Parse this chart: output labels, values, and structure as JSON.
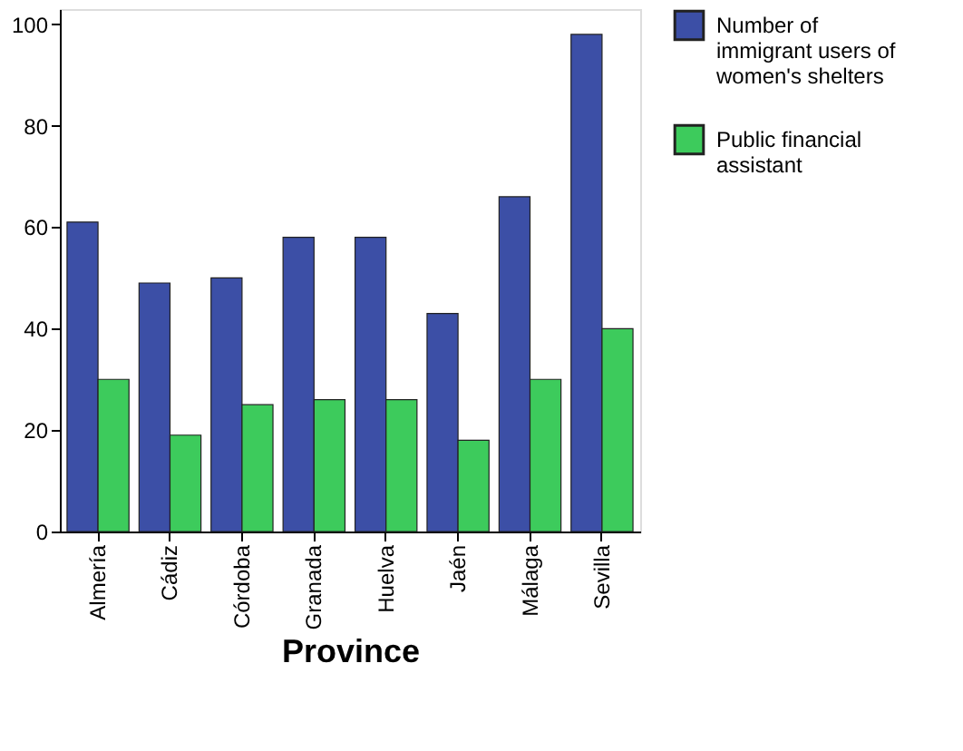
{
  "chart_data": {
    "type": "bar",
    "xlabel": "Province",
    "categories": [
      "Almería",
      "Cádiz",
      "Córdoba",
      "Granada",
      "Huelva",
      "Jaén",
      "Málaga",
      "Sevilla"
    ],
    "series": [
      {
        "name": "Number of immigrant users of women's shelters",
        "color": "#3c4fa6",
        "values": [
          61,
          49,
          50,
          58,
          58,
          43,
          66,
          98
        ]
      },
      {
        "name": "Public financial assistant",
        "color": "#3dcb5c",
        "values": [
          30,
          19,
          25,
          26,
          26,
          18,
          30,
          40
        ]
      }
    ],
    "ylim": [
      0,
      103
    ],
    "yticks": [
      0,
      20,
      40,
      60,
      80,
      100
    ],
    "grid": false,
    "legend": "top right"
  }
}
